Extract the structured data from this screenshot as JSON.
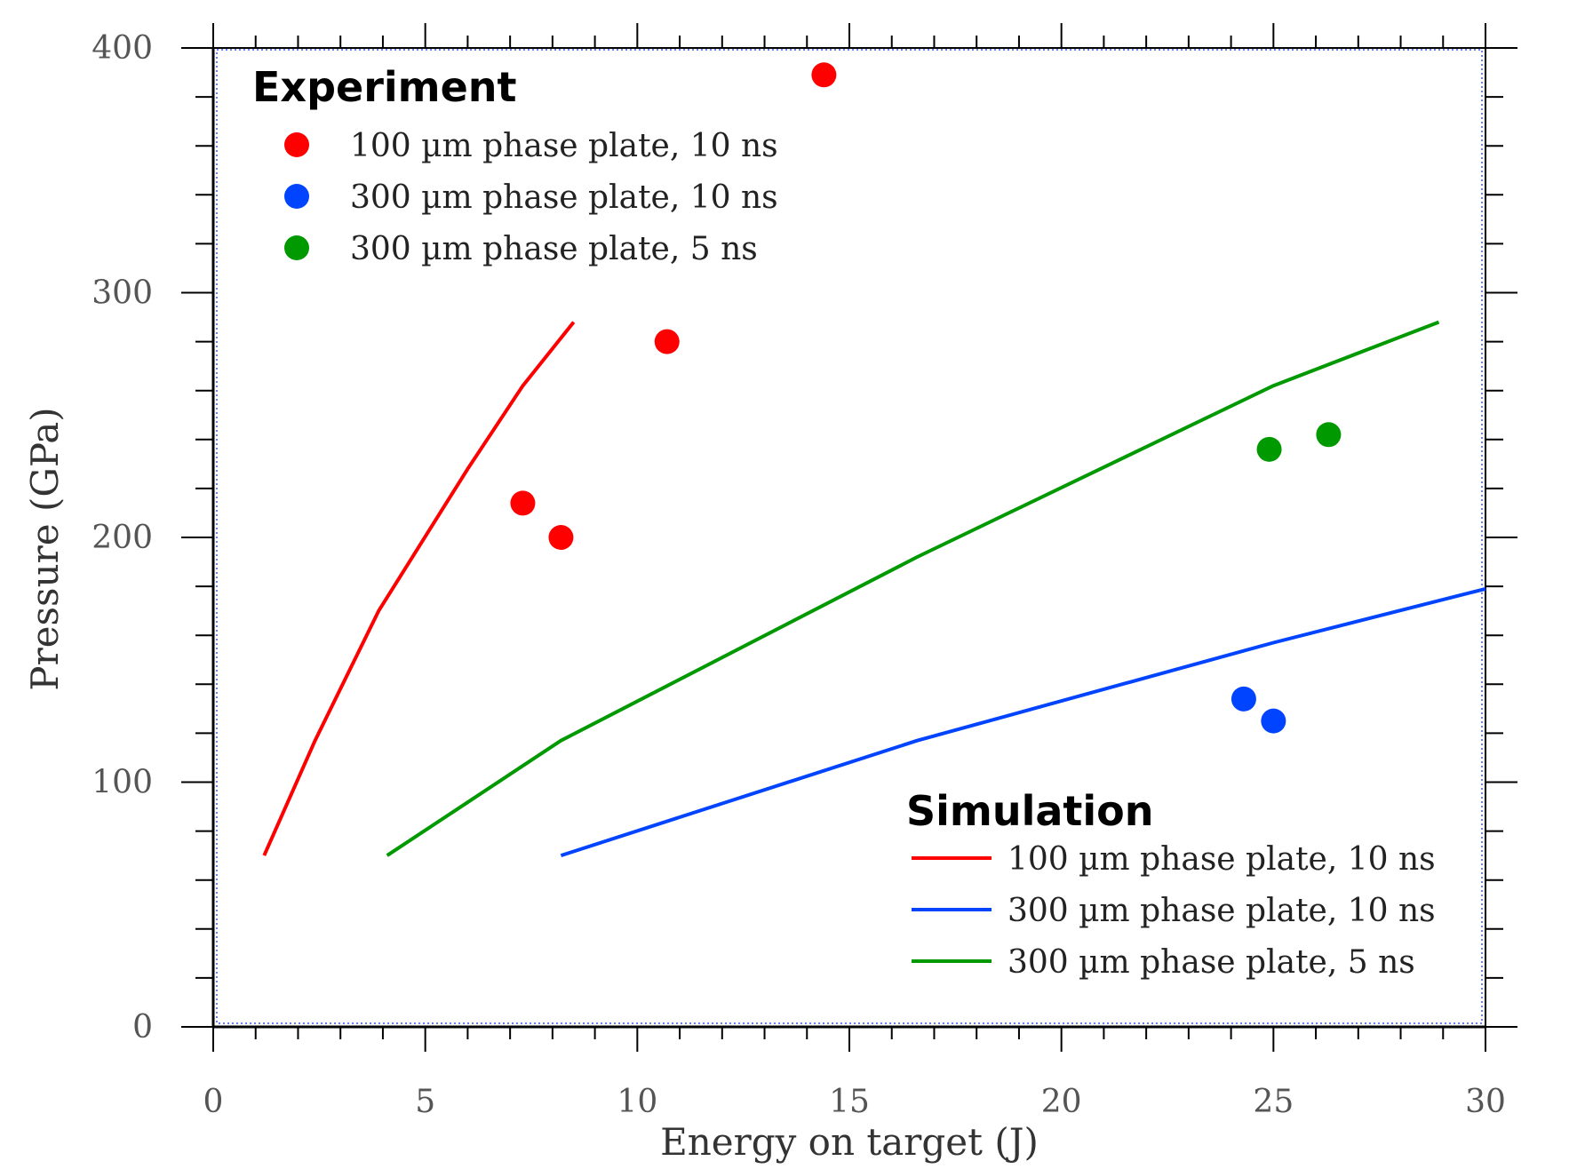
{
  "chart_data": {
    "type": "scatter",
    "xlabel": "Energy on target (J)",
    "ylabel": "Pressure (GPa)",
    "xlim": [
      0,
      30
    ],
    "ylim": [
      0,
      400
    ],
    "xticks": [
      0,
      5,
      10,
      15,
      20,
      25,
      30
    ],
    "yticks": [
      0,
      100,
      200,
      300,
      400
    ],
    "grid": false,
    "experiment_legend": {
      "title": "Experiment",
      "placement": "top-left"
    },
    "simulation_legend": {
      "title": "Simulation",
      "placement": "bottom-right"
    },
    "experiment_series": [
      {
        "name": "100 µm phase plate, 10 ns",
        "color": "#ff0000",
        "points": [
          [
            7.3,
            214
          ],
          [
            8.2,
            200
          ],
          [
            10.7,
            280
          ],
          [
            14.4,
            389
          ]
        ]
      },
      {
        "name": "300 µm phase plate, 10 ns",
        "color": "#0044ff",
        "points": [
          [
            24.3,
            134
          ],
          [
            25.0,
            125
          ]
        ]
      },
      {
        "name": "300 µm phase plate, 5 ns",
        "color": "#009900",
        "points": [
          [
            24.9,
            236
          ],
          [
            26.3,
            242
          ]
        ]
      }
    ],
    "simulation_series": [
      {
        "name": "100 µm phase plate, 10 ns",
        "color": "#ff0000",
        "points": [
          [
            1.2,
            70
          ],
          [
            2.4,
            117
          ],
          [
            3.9,
            170
          ],
          [
            6.0,
            228
          ],
          [
            7.3,
            262
          ],
          [
            8.5,
            288
          ]
        ]
      },
      {
        "name": "300 µm phase plate, 10 ns",
        "color": "#0044ff",
        "points": [
          [
            8.2,
            70
          ],
          [
            16.6,
            117
          ],
          [
            25.0,
            157
          ],
          [
            30.0,
            179
          ]
        ]
      },
      {
        "name": "300 µm phase plate, 5 ns",
        "color": "#009900",
        "points": [
          [
            4.1,
            70
          ],
          [
            8.2,
            117
          ],
          [
            16.6,
            192
          ],
          [
            25.0,
            262
          ],
          [
            28.9,
            288
          ]
        ]
      }
    ]
  }
}
